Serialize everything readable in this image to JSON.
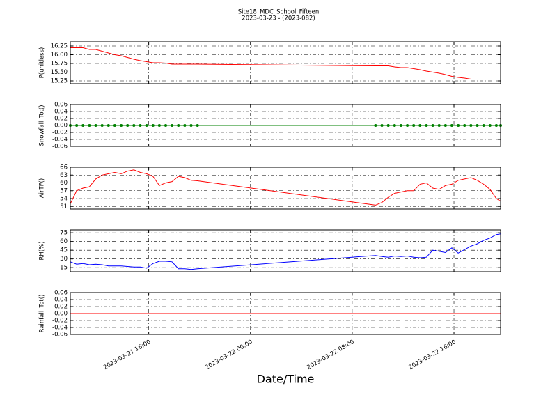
{
  "title": "Site18_MDC_School_Fifteen",
  "subtitle": "2023-03-23 - (2023-082)",
  "x_axis": {
    "label": "Date/Time",
    "xlim": [
      "2023-03-21 09:50",
      "2023-03-22 19:40"
    ],
    "xticks": [
      "2023-03-21 16:00",
      "2023-03-22 00:00",
      "2023-03-22 08:00",
      "2023-03-22 16:00"
    ]
  },
  "chart_data": [
    {
      "type": "line",
      "ylabel": "P(unitless)",
      "color": "#ff0000",
      "grid": true,
      "ylim": [
        15.17,
        16.37
      ],
      "yticks": [
        15.25,
        {
          "value": 15.5,
          "label": "15.50"
        },
        15.75,
        {
          "value": 16,
          "label": "16.00"
        },
        16.25
      ],
      "x": [
        "2023-03-21 09:50",
        "2023-03-21 10:20",
        "2023-03-21 10:50",
        "2023-03-21 11:20",
        "2023-03-21 11:50",
        "2023-03-21 12:20",
        "2023-03-21 12:50",
        "2023-03-21 13:20",
        "2023-03-21 13:50",
        "2023-03-21 14:20",
        "2023-03-21 14:50",
        "2023-03-21 15:20",
        "2023-03-21 15:50",
        "2023-03-21 16:20",
        "2023-03-21 16:50",
        "2023-03-21 17:20",
        "2023-03-21 17:50",
        "2023-03-21 18:20",
        "2023-03-21 18:50",
        "2023-03-21 19:20",
        "2023-03-21 19:50",
        "2023-03-22 09:50",
        "2023-03-22 10:20",
        "2023-03-22 10:50",
        "2023-03-22 11:20",
        "2023-03-22 11:50",
        "2023-03-22 12:20",
        "2023-03-22 12:50",
        "2023-03-22 13:20",
        "2023-03-22 13:50",
        "2023-03-22 14:20",
        "2023-03-22 14:50",
        "2023-03-22 15:20",
        "2023-03-22 15:50",
        "2023-03-22 16:20",
        "2023-03-22 16:50",
        "2023-03-22 17:20",
        "2023-03-22 17:50",
        "2023-03-22 18:20",
        "2023-03-22 18:50",
        "2023-03-22 19:20",
        "2023-03-22 19:40"
      ],
      "values": [
        16.2,
        16.2,
        16.2,
        16.15,
        16.15,
        16.1,
        16.05,
        16.0,
        15.97,
        15.92,
        15.87,
        15.83,
        15.8,
        15.77,
        15.77,
        15.76,
        15.73,
        15.73,
        15.73,
        15.73,
        15.73,
        15.68,
        15.68,
        15.68,
        15.65,
        15.63,
        15.63,
        15.6,
        15.57,
        15.53,
        15.5,
        15.47,
        15.43,
        15.38,
        15.35,
        15.33,
        15.3,
        15.3,
        15.3,
        15.3,
        15.3,
        15.3
      ]
    },
    {
      "type": "line",
      "ylabel": "Snowfall_Tot()",
      "color": "#008000",
      "marker": "o",
      "grid": true,
      "ylim": [
        -0.06,
        0.06
      ],
      "yticks": [
        -0.06,
        -0.04,
        -0.02,
        {
          "value": 0,
          "label": "0.00"
        },
        0.02,
        0.04,
        0.06
      ],
      "x": [
        "2023-03-21 09:50",
        "2023-03-21 10:20",
        "2023-03-21 10:50",
        "2023-03-21 11:20",
        "2023-03-21 11:50",
        "2023-03-21 12:20",
        "2023-03-21 12:50",
        "2023-03-21 13:20",
        "2023-03-21 13:50",
        "2023-03-21 14:20",
        "2023-03-21 14:50",
        "2023-03-21 15:20",
        "2023-03-21 15:50",
        "2023-03-21 16:20",
        "2023-03-21 16:50",
        "2023-03-21 17:20",
        "2023-03-21 17:50",
        "2023-03-21 18:20",
        "2023-03-21 18:50",
        "2023-03-21 19:20",
        "2023-03-21 19:50",
        "2023-03-22 09:50",
        "2023-03-22 10:20",
        "2023-03-22 10:50",
        "2023-03-22 11:20",
        "2023-03-22 11:50",
        "2023-03-22 12:20",
        "2023-03-22 12:50",
        "2023-03-22 13:20",
        "2023-03-22 13:50",
        "2023-03-22 14:20",
        "2023-03-22 14:50",
        "2023-03-22 15:20",
        "2023-03-22 15:50",
        "2023-03-22 16:20",
        "2023-03-22 16:50",
        "2023-03-22 17:20",
        "2023-03-22 17:50",
        "2023-03-22 18:20",
        "2023-03-22 18:50",
        "2023-03-22 19:20",
        "2023-03-22 19:40"
      ],
      "values": [
        0,
        0,
        0,
        0,
        0,
        0,
        0,
        0,
        0,
        0,
        0,
        0,
        0,
        0,
        0,
        0,
        0,
        0,
        0,
        0,
        0,
        0,
        0,
        0,
        0,
        0,
        0,
        0,
        0,
        0,
        0,
        0,
        0,
        0,
        0,
        0,
        0,
        0,
        0,
        0,
        0,
        0
      ]
    },
    {
      "type": "line",
      "ylabel": "AirTF()",
      "color": "#ff0000",
      "grid": true,
      "ylim": [
        50,
        66
      ],
      "yticks": [
        51,
        54,
        57,
        60,
        63,
        66
      ],
      "x": [
        "2023-03-21 09:50",
        "2023-03-21 10:20",
        "2023-03-21 10:50",
        "2023-03-21 11:20",
        "2023-03-21 11:50",
        "2023-03-21 12:20",
        "2023-03-21 12:50",
        "2023-03-21 13:20",
        "2023-03-21 13:50",
        "2023-03-21 14:20",
        "2023-03-21 14:50",
        "2023-03-21 15:20",
        "2023-03-21 15:50",
        "2023-03-21 16:20",
        "2023-03-21 16:50",
        "2023-03-21 17:20",
        "2023-03-21 17:50",
        "2023-03-21 18:20",
        "2023-03-21 18:50",
        "2023-03-21 19:20",
        "2023-03-21 19:50",
        "2023-03-22 09:50",
        "2023-03-22 10:20",
        "2023-03-22 10:50",
        "2023-03-22 11:20",
        "2023-03-22 11:50",
        "2023-03-22 12:20",
        "2023-03-22 12:50",
        "2023-03-22 13:20",
        "2023-03-22 13:50",
        "2023-03-22 14:20",
        "2023-03-22 14:50",
        "2023-03-22 15:20",
        "2023-03-22 15:50",
        "2023-03-22 16:20",
        "2023-03-22 16:50",
        "2023-03-22 17:20",
        "2023-03-22 17:50",
        "2023-03-22 18:20",
        "2023-03-22 18:50",
        "2023-03-22 19:20",
        "2023-03-22 19:40"
      ],
      "values": [
        52,
        57,
        58,
        58.5,
        61.5,
        63,
        63.5,
        64,
        63.5,
        64.5,
        65,
        64,
        63.5,
        62.5,
        59,
        60,
        60.5,
        62.5,
        62,
        61,
        60.8,
        51.5,
        52.5,
        54.5,
        56,
        56.5,
        57,
        57,
        59.5,
        60,
        58,
        57.5,
        59,
        59.5,
        61,
        61.5,
        62,
        61,
        59.5,
        57.5,
        54,
        53
      ]
    },
    {
      "type": "line",
      "ylabel": "RH(%)",
      "color": "#0000ff",
      "grid": true,
      "ylim": [
        8,
        80
      ],
      "yticks": [
        15,
        30,
        45,
        60,
        75
      ],
      "x": [
        "2023-03-21 09:50",
        "2023-03-21 10:20",
        "2023-03-21 10:50",
        "2023-03-21 11:20",
        "2023-03-21 11:50",
        "2023-03-21 12:20",
        "2023-03-21 12:50",
        "2023-03-21 13:20",
        "2023-03-21 13:50",
        "2023-03-21 14:20",
        "2023-03-21 14:50",
        "2023-03-21 15:20",
        "2023-03-21 15:50",
        "2023-03-21 16:20",
        "2023-03-21 16:50",
        "2023-03-21 17:20",
        "2023-03-21 17:50",
        "2023-03-21 18:20",
        "2023-03-21 18:50",
        "2023-03-21 19:20",
        "2023-03-21 19:50",
        "2023-03-22 09:50",
        "2023-03-22 10:20",
        "2023-03-22 10:50",
        "2023-03-22 11:20",
        "2023-03-22 11:50",
        "2023-03-22 12:20",
        "2023-03-22 12:50",
        "2023-03-22 13:20",
        "2023-03-22 13:50",
        "2023-03-22 14:20",
        "2023-03-22 14:50",
        "2023-03-22 15:20",
        "2023-03-22 15:50",
        "2023-03-22 16:20",
        "2023-03-22 16:50",
        "2023-03-22 17:20",
        "2023-03-22 17:50",
        "2023-03-22 18:20",
        "2023-03-22 18:50",
        "2023-03-22 19:20",
        "2023-03-22 19:40"
      ],
      "values": [
        25,
        21,
        22,
        20,
        21,
        20,
        18,
        18,
        18,
        17,
        16,
        16,
        14,
        22,
        26,
        26,
        25,
        13,
        13,
        12,
        13,
        36,
        34,
        33,
        35,
        34,
        35,
        33,
        32,
        33,
        45,
        43,
        41,
        49,
        40,
        46,
        52,
        56,
        62,
        66,
        72,
        73
      ]
    },
    {
      "type": "line",
      "ylabel": "Rainfall_Tot()",
      "color": "#ff0000",
      "grid": true,
      "ylim": [
        -0.06,
        0.06
      ],
      "yticks": [
        -0.06,
        -0.04,
        -0.02,
        {
          "value": 0,
          "label": "0.00"
        },
        0.02,
        0.04,
        0.06
      ],
      "x": [
        "2023-03-21 09:50",
        "2023-03-21 10:20",
        "2023-03-21 10:50",
        "2023-03-21 11:20",
        "2023-03-21 11:50",
        "2023-03-21 12:20",
        "2023-03-21 12:50",
        "2023-03-21 13:20",
        "2023-03-21 13:50",
        "2023-03-21 14:20",
        "2023-03-21 14:50",
        "2023-03-21 15:20",
        "2023-03-21 15:50",
        "2023-03-21 16:20",
        "2023-03-21 16:50",
        "2023-03-21 17:20",
        "2023-03-21 17:50",
        "2023-03-21 18:20",
        "2023-03-21 18:50",
        "2023-03-21 19:20",
        "2023-03-21 19:50",
        "2023-03-22 09:50",
        "2023-03-22 10:20",
        "2023-03-22 10:50",
        "2023-03-22 11:20",
        "2023-03-22 11:50",
        "2023-03-22 12:20",
        "2023-03-22 12:50",
        "2023-03-22 13:20",
        "2023-03-22 13:50",
        "2023-03-22 14:20",
        "2023-03-22 14:50",
        "2023-03-22 15:20",
        "2023-03-22 15:50",
        "2023-03-22 16:20",
        "2023-03-22 16:50",
        "2023-03-22 17:20",
        "2023-03-22 17:50",
        "2023-03-22 18:20",
        "2023-03-22 18:50",
        "2023-03-22 19:20",
        "2023-03-22 19:40"
      ],
      "values": [
        0,
        0,
        0,
        0,
        0,
        0,
        0,
        0,
        0,
        0,
        0,
        0,
        0,
        0,
        0,
        0,
        0,
        0,
        0,
        0,
        0,
        0,
        0,
        0,
        0,
        0,
        0,
        0,
        0,
        0,
        0,
        0,
        0,
        0,
        0,
        0,
        0,
        0,
        0,
        0,
        0,
        0
      ]
    }
  ]
}
